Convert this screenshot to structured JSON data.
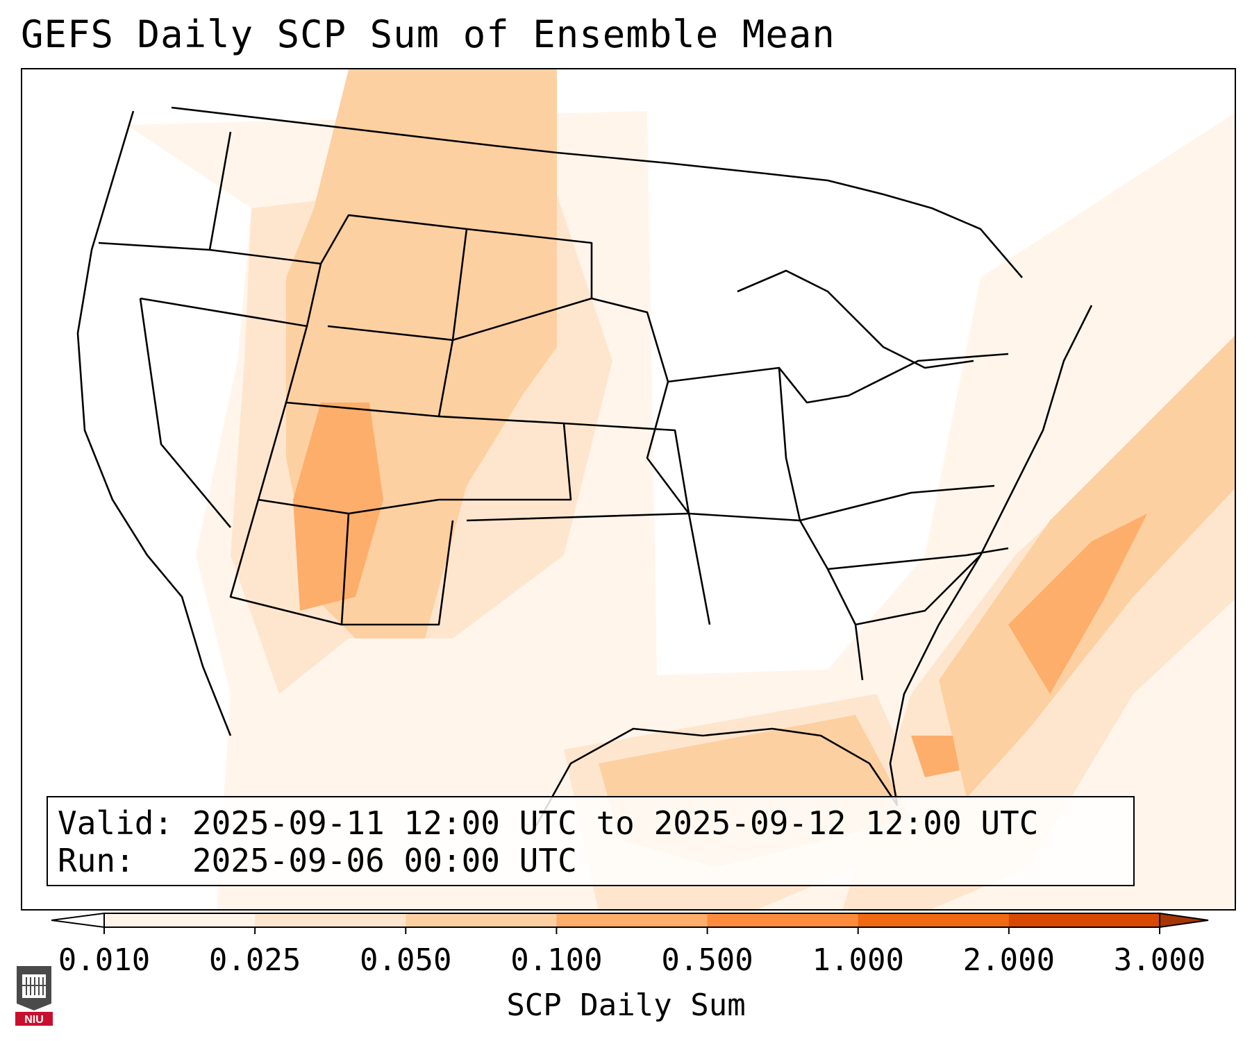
{
  "title": "GEFS Daily SCP Sum of Ensemble Mean",
  "info": {
    "valid_label": "Valid:",
    "valid_value": "2025-09-11 12:00 UTC to 2025-09-12 12:00 UTC",
    "run_label": "Run:",
    "run_value": "2025-09-06 00:00 UTC"
  },
  "colorbar": {
    "label": "SCP Daily Sum",
    "ticks": [
      "0.010",
      "0.025",
      "0.050",
      "0.100",
      "0.500",
      "1.000",
      "2.000",
      "3.000"
    ],
    "colors": [
      "#fff5eb",
      "#fee6ce",
      "#fdd0a2",
      "#fdae6b",
      "#fd8d3c",
      "#f16913",
      "#d94801"
    ],
    "over_color": "#a63603",
    "under_color": "#ffffff"
  },
  "logo_text": "NIU"
}
